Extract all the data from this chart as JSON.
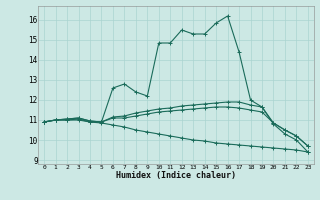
{
  "xlabel": "Humidex (Indice chaleur)",
  "bg_color": "#cce8e4",
  "grid_color": "#aad4d0",
  "line_color": "#1a6b5a",
  "xlim": [
    -0.5,
    23.5
  ],
  "ylim": [
    8.8,
    16.7
  ],
  "yticks": [
    9,
    10,
    11,
    12,
    13,
    14,
    15,
    16
  ],
  "xticks": [
    0,
    1,
    2,
    3,
    4,
    5,
    6,
    7,
    8,
    9,
    10,
    11,
    12,
    13,
    14,
    15,
    16,
    17,
    18,
    19,
    20,
    21,
    22,
    23
  ],
  "lines": [
    {
      "x": [
        0,
        1,
        2,
        3,
        4,
        5,
        6,
        7,
        8,
        9,
        10,
        11,
        12,
        13,
        14,
        15,
        16,
        17,
        18,
        19,
        20,
        21,
        22,
        23
      ],
      "y": [
        10.9,
        11.0,
        11.0,
        11.0,
        10.9,
        10.9,
        12.6,
        12.8,
        12.4,
        12.2,
        14.85,
        14.85,
        15.5,
        15.3,
        15.3,
        15.85,
        16.2,
        14.4,
        12.0,
        11.65,
        10.8,
        10.3,
        10.0,
        9.4
      ]
    },
    {
      "x": [
        0,
        1,
        2,
        3,
        4,
        5,
        6,
        7,
        8,
        9,
        10,
        11,
        12,
        13,
        14,
        15,
        16,
        17,
        18,
        19,
        20,
        21,
        22,
        23
      ],
      "y": [
        10.9,
        11.0,
        11.05,
        11.1,
        10.95,
        10.9,
        11.15,
        11.2,
        11.35,
        11.45,
        11.55,
        11.6,
        11.7,
        11.75,
        11.8,
        11.85,
        11.9,
        11.9,
        11.75,
        11.65,
        10.85,
        10.5,
        10.2,
        9.7
      ]
    },
    {
      "x": [
        0,
        1,
        2,
        3,
        4,
        5,
        6,
        7,
        8,
        9,
        10,
        11,
        12,
        13,
        14,
        15,
        16,
        17,
        18,
        19,
        20,
        21,
        22,
        23
      ],
      "y": [
        10.9,
        11.0,
        11.05,
        11.1,
        10.95,
        10.9,
        11.1,
        11.1,
        11.2,
        11.3,
        11.4,
        11.45,
        11.5,
        11.55,
        11.6,
        11.65,
        11.65,
        11.6,
        11.5,
        11.4,
        10.85,
        10.5,
        10.2,
        9.7
      ]
    },
    {
      "x": [
        0,
        1,
        2,
        3,
        4,
        5,
        6,
        7,
        8,
        9,
        10,
        11,
        12,
        13,
        14,
        15,
        16,
        17,
        18,
        19,
        20,
        21,
        22,
        23
      ],
      "y": [
        10.9,
        11.0,
        11.0,
        11.05,
        10.9,
        10.85,
        10.75,
        10.65,
        10.5,
        10.4,
        10.3,
        10.2,
        10.1,
        10.0,
        9.95,
        9.85,
        9.8,
        9.75,
        9.7,
        9.65,
        9.6,
        9.55,
        9.5,
        9.4
      ]
    }
  ]
}
